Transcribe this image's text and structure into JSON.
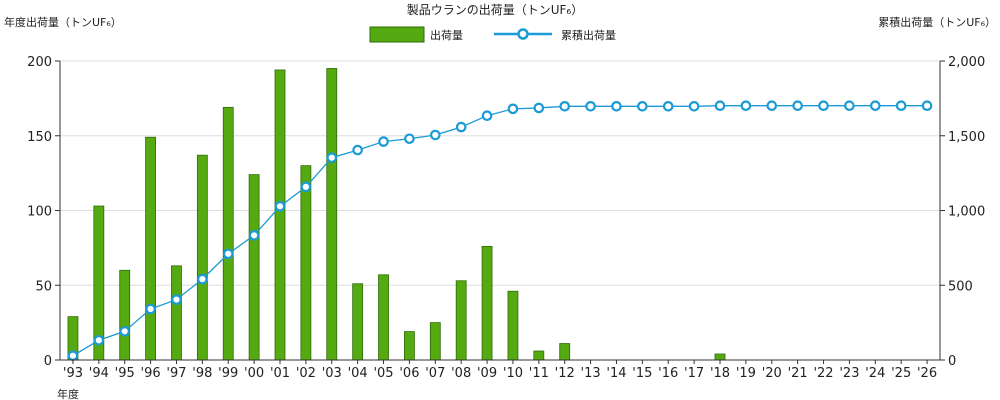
{
  "chart_data": {
    "type": "bar",
    "title": "製品ウランの出荷量（トンUF₆）",
    "ylabel_left": "年度出荷量（トンUF₆）",
    "ylabel_right": "累積出荷量（トンUF₆）",
    "xlabel": "年度",
    "categories": [
      "'93",
      "'94",
      "'95",
      "'96",
      "'97",
      "'98",
      "'99",
      "'00",
      "'01",
      "'02",
      "'03",
      "'04",
      "'05",
      "'06",
      "'07",
      "'08",
      "'09",
      "'10",
      "'11",
      "'12",
      "'13",
      "'14",
      "'15",
      "'16",
      "'17",
      "'18",
      "'19",
      "'20",
      "'21",
      "'22",
      "'23",
      "'24",
      "'25",
      "'26"
    ],
    "ylim_left": [
      0,
      200
    ],
    "ylim_right": [
      0,
      2000
    ],
    "yticks_left": [
      "0",
      "50",
      "100",
      "150",
      "200"
    ],
    "yticks_right": [
      "0",
      "500",
      "1,000",
      "1,500",
      "2,000"
    ],
    "grid": true,
    "legend_position": "top-center",
    "series": [
      {
        "name": "出荷量",
        "type": "bar",
        "axis": "left",
        "color": "#55aa11",
        "values": [
          29,
          103,
          60,
          149,
          63,
          137,
          169,
          124,
          194,
          130,
          195,
          51,
          57,
          19,
          25,
          53,
          76,
          46,
          6,
          11,
          null,
          null,
          null,
          null,
          null,
          4,
          null,
          null,
          null,
          null,
          null,
          null,
          null,
          null
        ]
      },
      {
        "name": "累積出荷量",
        "type": "line",
        "axis": "right",
        "color": "#1a9ad6",
        "values": [
          29,
          132,
          192,
          341,
          404,
          541,
          710,
          834,
          1028,
          1158,
          1353,
          1404,
          1461,
          1480,
          1505,
          1558,
          1634,
          1680,
          1686,
          1697,
          1697,
          1697,
          1697,
          1697,
          1697,
          1701,
          1701,
          1701,
          1701,
          1701,
          1701,
          1701,
          1701,
          1701
        ]
      }
    ]
  }
}
